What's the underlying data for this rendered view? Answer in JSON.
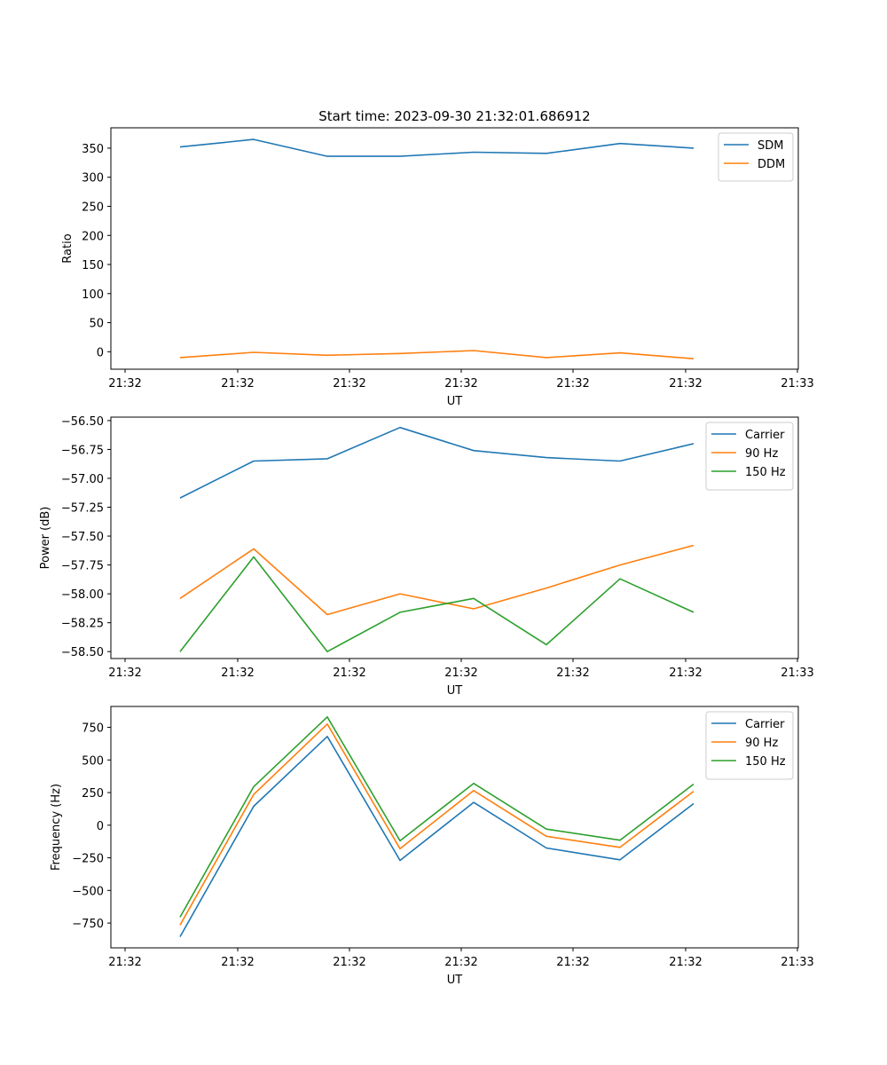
{
  "chart_data": [
    {
      "type": "line",
      "title": "Start time: 2023-09-30 21:32:01.686912",
      "xlabel": "UT",
      "ylabel": "Ratio",
      "xticklabels": [
        "21:32",
        "21:32",
        "21:32",
        "21:32",
        "21:32",
        "21:32",
        "21:33"
      ],
      "yticks": [
        0,
        50,
        100,
        150,
        200,
        250,
        300,
        350
      ],
      "ylim": [
        -30,
        385
      ],
      "legend_position": "top-right",
      "series": [
        {
          "name": "SDM",
          "color": "#1f77b4",
          "values": [
            352,
            365,
            336,
            336,
            343,
            341,
            358,
            350
          ]
        },
        {
          "name": "DDM",
          "color": "#ff7f0e",
          "values": [
            -10,
            -1,
            -6,
            -3,
            2,
            -10,
            -2,
            -12
          ]
        }
      ]
    },
    {
      "type": "line",
      "title": "",
      "xlabel": "UT",
      "ylabel": "Power (dB)",
      "xticklabels": [
        "21:32",
        "21:32",
        "21:32",
        "21:32",
        "21:32",
        "21:32",
        "21:33"
      ],
      "yticks": [
        -58.5,
        -58.25,
        -58.0,
        -57.75,
        -57.5,
        -57.25,
        -57.0,
        -56.75,
        -56.5
      ],
      "yticklabels": [
        "−58.50",
        "−58.25",
        "−58.00",
        "−57.75",
        "−57.50",
        "−57.25",
        "−57.00",
        "−56.75",
        "−56.50"
      ],
      "ylim": [
        -58.56,
        -56.47
      ],
      "legend_position": "top-right",
      "series": [
        {
          "name": "Carrier",
          "color": "#1f77b4",
          "values": [
            -57.17,
            -56.85,
            -56.83,
            -56.56,
            -56.76,
            -56.82,
            -56.85,
            -56.7
          ]
        },
        {
          "name": "90 Hz",
          "color": "#ff7f0e",
          "values": [
            -58.04,
            -57.61,
            -58.18,
            -58.0,
            -58.13,
            -57.95,
            -57.75,
            -57.58
          ]
        },
        {
          "name": "150 Hz",
          "color": "#2ca02c",
          "values": [
            -58.5,
            -57.68,
            -58.5,
            -58.16,
            -58.04,
            -58.44,
            -57.87,
            -58.16
          ]
        }
      ]
    },
    {
      "type": "line",
      "title": "",
      "xlabel": "UT",
      "ylabel": "Frequency (Hz)",
      "xticklabels": [
        "21:32",
        "21:32",
        "21:32",
        "21:32",
        "21:32",
        "21:32",
        "21:33"
      ],
      "yticks": [
        -750,
        -500,
        -250,
        0,
        250,
        500,
        750
      ],
      "yticklabels": [
        "−750",
        "−500",
        "−250",
        "0",
        "250",
        "500",
        "750"
      ],
      "ylim": [
        -940,
        910
      ],
      "legend_position": "top-right",
      "series": [
        {
          "name": "Carrier",
          "color": "#1f77b4",
          "values": [
            -855,
            145,
            680,
            -270,
            175,
            -175,
            -265,
            165
          ]
        },
        {
          "name": "90 Hz",
          "color": "#ff7f0e",
          "values": [
            -765,
            235,
            775,
            -180,
            265,
            -85,
            -170,
            260
          ]
        },
        {
          "name": "150 Hz",
          "color": "#2ca02c",
          "values": [
            -705,
            295,
            830,
            -120,
            320,
            -30,
            -115,
            315
          ]
        }
      ]
    }
  ]
}
